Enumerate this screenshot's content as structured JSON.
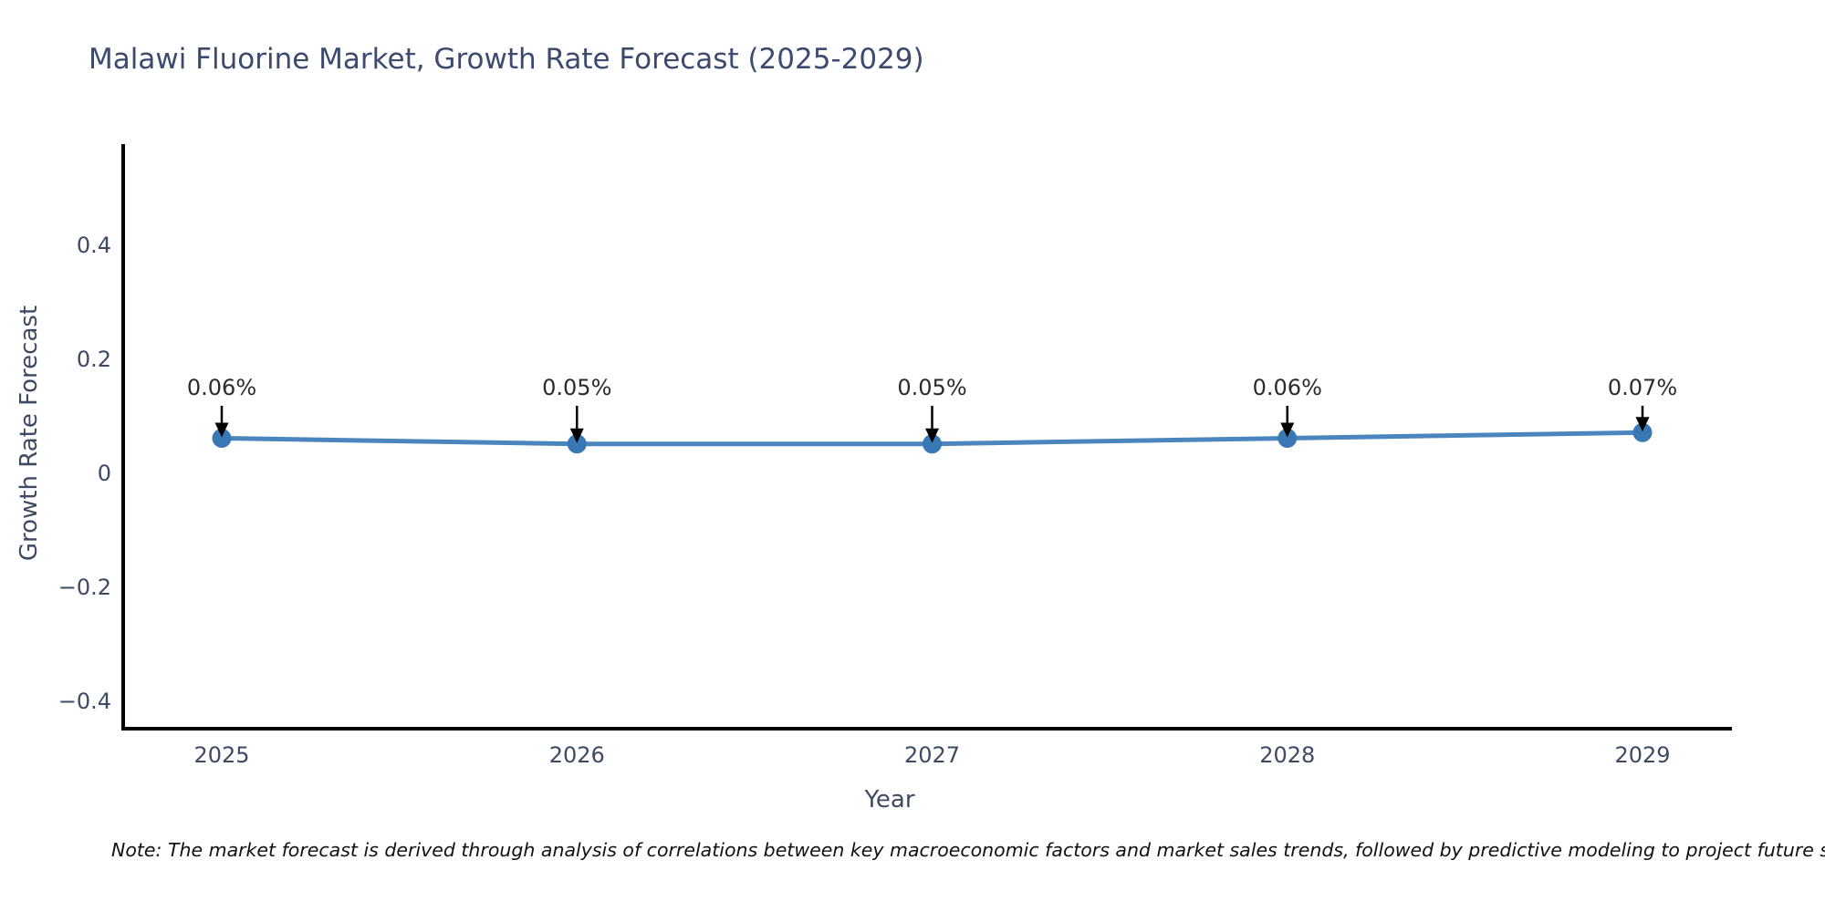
{
  "chart_data": {
    "type": "line",
    "title": "Malawi Fluorine Market, Growth Rate Forecast (2025-2029)",
    "xlabel": "Year",
    "ylabel": "Growth Rate Forecast",
    "categories": [
      "2025",
      "2026",
      "2027",
      "2028",
      "2029"
    ],
    "series": [
      {
        "name": "Growth Rate Forecast",
        "values": [
          0.06,
          0.05,
          0.05,
          0.06,
          0.07
        ],
        "point_labels": [
          "0.06%",
          "0.05%",
          "0.05%",
          "0.06%",
          "0.07%"
        ]
      }
    ],
    "yticks": [
      0.4,
      0.2,
      0,
      -0.2,
      -0.4
    ],
    "ytick_labels": [
      "0.4",
      "0.2",
      "0",
      "−0.2",
      "−0.4"
    ],
    "ylim": [
      -0.45,
      0.57
    ],
    "grid": false,
    "legend_position": "none",
    "colors": {
      "line": "#4a86bd",
      "marker": "#3878b4",
      "axis": "#000000",
      "tick_label": "#3e4a63",
      "title": "#3b4a6e",
      "annotation_text": "#2b2b2b",
      "annotation_arrow": "#000000"
    }
  },
  "footnote": {
    "text": "Note: The market forecast is derived through analysis of correlations between key macroeconomic factors and market sales trends, followed by predictive modeling to project future sales."
  }
}
